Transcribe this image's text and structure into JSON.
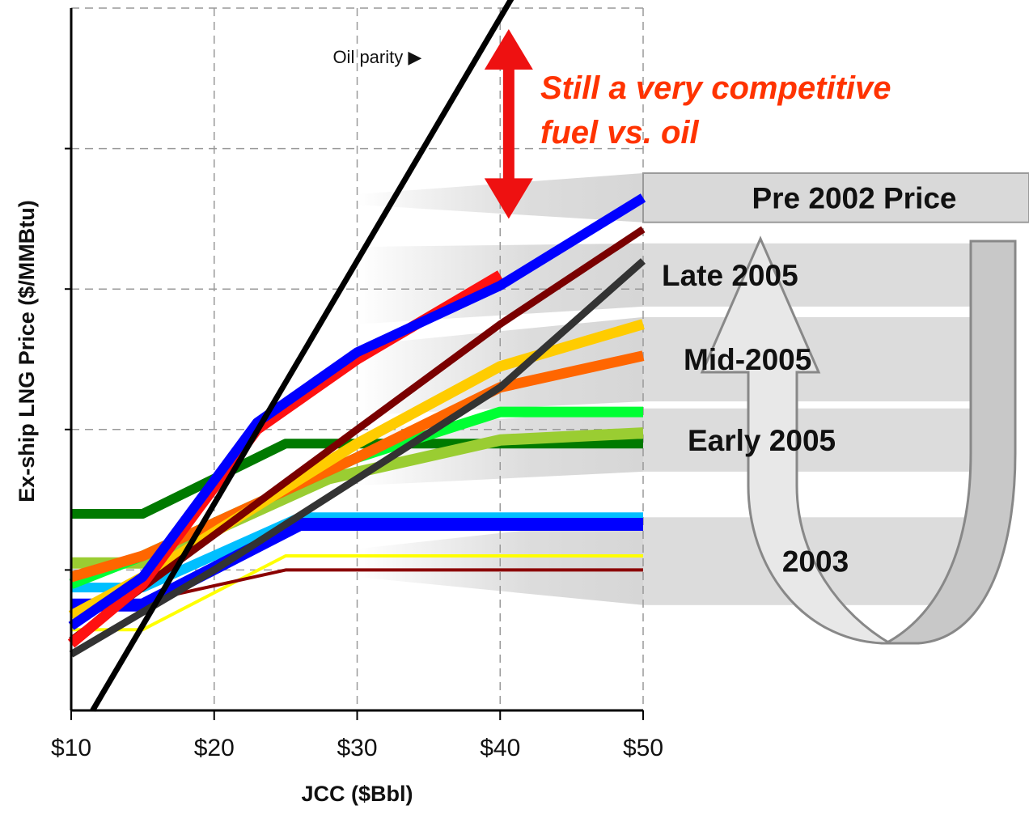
{
  "chart_data": {
    "type": "line",
    "xlabel": "JCC ($Bbl)",
    "ylabel": "Ex-ship LNG Price ($/MMBtu)",
    "x_ticks": [
      "$10",
      "$20",
      "$30",
      "$40",
      "$50"
    ],
    "xlim": [
      10,
      50
    ],
    "ylim": [
      0,
      10
    ],
    "grid": true,
    "y_tick_values": [
      2,
      4,
      6,
      8
    ],
    "oil_parity": {
      "label": "Oil parity",
      "marker": "▶",
      "points": [
        [
          11.5,
          0
        ],
        [
          40.8,
          10
        ]
      ]
    },
    "callout": {
      "lines": [
        "Still a very competitive",
        "fuel vs. oil"
      ],
      "color": "#ff3300",
      "arrow_color": "#ee1111",
      "arrow_x": 40.6,
      "arrow_y": [
        7.0,
        9.7
      ]
    },
    "series": [
      {
        "color": "#007a00",
        "width": 12,
        "points": [
          [
            10,
            2.8
          ],
          [
            15,
            2.8
          ],
          [
            25,
            3.8
          ],
          [
            50,
            3.8
          ]
        ]
      },
      {
        "color": "#ffff00",
        "width": 4,
        "points": [
          [
            10,
            1.15
          ],
          [
            15,
            1.15
          ],
          [
            25,
            2.2
          ],
          [
            50,
            2.2
          ]
        ]
      },
      {
        "color": "#8b0000",
        "width": 4,
        "points": [
          [
            10,
            1.55
          ],
          [
            15,
            1.55
          ],
          [
            25,
            2.0
          ],
          [
            50,
            2.0
          ]
        ]
      },
      {
        "color": "#00bfff",
        "width": 12,
        "points": [
          [
            10,
            1.75
          ],
          [
            15,
            1.75
          ],
          [
            26,
            2.75
          ],
          [
            50,
            2.75
          ]
        ]
      },
      {
        "color": "#0000ff",
        "width": 16,
        "points": [
          [
            10,
            1.5
          ],
          [
            15,
            1.5
          ],
          [
            26,
            2.65
          ],
          [
            50,
            2.65
          ]
        ]
      },
      {
        "color": "#9acd32",
        "width": 14,
        "points": [
          [
            10,
            2.1
          ],
          [
            15,
            2.1
          ],
          [
            28,
            3.3
          ],
          [
            40,
            3.85
          ],
          [
            50,
            3.95
          ]
        ]
      },
      {
        "color": "#00ff33",
        "width": 13,
        "points": [
          [
            10,
            1.8
          ],
          [
            15,
            2.2
          ],
          [
            30,
            3.6
          ],
          [
            40,
            4.25
          ],
          [
            50,
            4.25
          ]
        ]
      },
      {
        "color": "#ff6600",
        "width": 13,
        "points": [
          [
            10,
            1.9
          ],
          [
            15,
            2.2
          ],
          [
            30,
            3.6
          ],
          [
            40,
            4.6
          ],
          [
            50,
            5.05
          ]
        ]
      },
      {
        "color": "#ffcc00",
        "width": 13,
        "points": [
          [
            10,
            1.35
          ],
          [
            15,
            1.9
          ],
          [
            30,
            3.8
          ],
          [
            40,
            4.9
          ],
          [
            50,
            5.5
          ]
        ]
      },
      {
        "color": "#333333",
        "width": 9,
        "points": [
          [
            10,
            0.8
          ],
          [
            20,
            2.0
          ],
          [
            30,
            3.3
          ],
          [
            40,
            4.6
          ],
          [
            50,
            6.4
          ]
        ]
      },
      {
        "color": "#7a0000",
        "width": 9,
        "points": [
          [
            10,
            1.0
          ],
          [
            20,
            2.5
          ],
          [
            30,
            4.0
          ],
          [
            40,
            5.5
          ],
          [
            50,
            6.85
          ]
        ]
      },
      {
        "color": "#ff1111",
        "width": 13,
        "points": [
          [
            10,
            0.95
          ],
          [
            15,
            1.8
          ],
          [
            23,
            4.0
          ],
          [
            30,
            5.0
          ],
          [
            40,
            6.2
          ]
        ]
      },
      {
        "color": "#0000ff",
        "width": 12,
        "points": [
          [
            10,
            1.2
          ],
          [
            15,
            1.9
          ],
          [
            23,
            4.1
          ],
          [
            30,
            5.1
          ],
          [
            40,
            6.05
          ],
          [
            50,
            7.3
          ]
        ]
      }
    ],
    "bands": [
      {
        "label": "Pre 2002 Price",
        "y": [
          6.95,
          7.65
        ],
        "from": [
          7.2,
          7.35
        ]
      },
      {
        "label": "Late 2005",
        "y": [
          5.75,
          6.65
        ],
        "from": [
          5.5,
          6.6
        ]
      },
      {
        "label": "Mid-2005",
        "y": [
          4.4,
          5.6
        ],
        "from": [
          4.2,
          5.2
        ]
      },
      {
        "label": "Early 2005",
        "y": [
          3.4,
          4.3
        ],
        "from": [
          3.2,
          4.0
        ]
      },
      {
        "label": "2003",
        "y": [
          1.5,
          2.75
        ],
        "from": [
          1.9,
          2.3
        ]
      }
    ],
    "progress_arrow": {
      "fill": "#e8e8e8",
      "stroke": "#888888",
      "back_fill": "#c8c8c8"
    }
  }
}
